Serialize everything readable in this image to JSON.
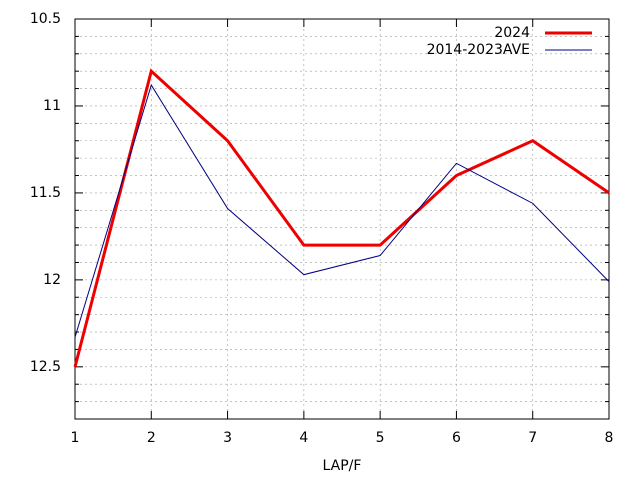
{
  "chart_data": {
    "type": "line",
    "xlabel": "LAP/F",
    "x": [
      1,
      2,
      3,
      4,
      5,
      6,
      7,
      8
    ],
    "series": [
      {
        "name": "2024",
        "color": "#ee0000",
        "width": 3,
        "values": [
          12.5,
          10.8,
          11.2,
          11.8,
          11.8,
          11.4,
          11.2,
          11.5
        ]
      },
      {
        "name": "2014-2023AVE",
        "color": "#000080",
        "width": 1,
        "values": [
          12.33,
          10.88,
          11.59,
          11.97,
          11.86,
          11.33,
          11.56,
          12.01
        ]
      }
    ],
    "xlim": [
      1,
      8
    ],
    "xticks": [
      1,
      2,
      3,
      4,
      5,
      6,
      7,
      8
    ],
    "ylim": [
      10.5,
      12.8
    ],
    "yticks": [
      10.5,
      11,
      11.5,
      12,
      12.5
    ],
    "yminorticks": [
      10.6,
      10.7,
      10.8,
      10.9,
      11.1,
      11.2,
      11.3,
      11.4,
      11.6,
      11.7,
      11.8,
      11.9,
      12.1,
      12.2,
      12.3,
      12.4,
      12.6,
      12.7
    ],
    "y_reversed": true,
    "grid": true,
    "legend": "top-right"
  }
}
